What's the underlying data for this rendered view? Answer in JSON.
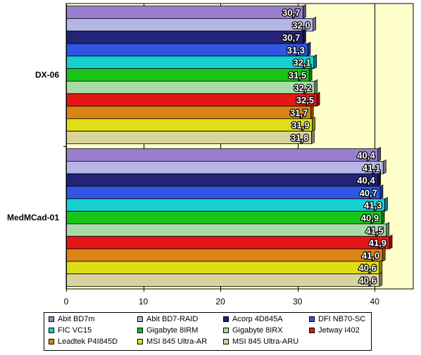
{
  "chart_data": {
    "type": "bar",
    "orientation": "horizontal",
    "categories": [
      "DX-06",
      "MedMCad-01"
    ],
    "series": [
      {
        "name": "Abit BD7m",
        "color": "#9a7fd0",
        "values": [
          30.7,
          40.4
        ]
      },
      {
        "name": "Abit BD7-RAID",
        "color": "#b6b6e6",
        "values": [
          32.0,
          41.1
        ]
      },
      {
        "name": "Acorp 4D845A",
        "color": "#232377",
        "values": [
          30.7,
          40.4
        ]
      },
      {
        "name": "DFI NB70-SC",
        "color": "#2f55e2",
        "values": [
          31.3,
          40.7
        ]
      },
      {
        "name": "FIC VC15",
        "color": "#16cfcf",
        "values": [
          32.1,
          41.3
        ]
      },
      {
        "name": "Gigabyte 8IRM",
        "color": "#18c418",
        "values": [
          31.5,
          40.9
        ]
      },
      {
        "name": "Gigabyte 8IRX",
        "color": "#a9dba9",
        "values": [
          32.2,
          41.5
        ]
      },
      {
        "name": "Jetway I402",
        "color": "#e41616",
        "values": [
          32.5,
          41.9
        ]
      },
      {
        "name": "Leadtek P4I845D",
        "color": "#d98414",
        "values": [
          31.7,
          41.0
        ]
      },
      {
        "name": "MSI 845 Ultra-AR",
        "color": "#dede16",
        "values": [
          31.9,
          40.6
        ]
      },
      {
        "name": "MSI 845 Ultra-ARU",
        "color": "#d8d39c",
        "values": [
          31.8,
          40.6
        ]
      }
    ],
    "value_labels": [
      [
        "30,7",
        "32,0",
        "30,7",
        "31,3",
        "32,1",
        "31,5",
        "32,2",
        "32,5",
        "31,7",
        "31,9",
        "31,8"
      ],
      [
        "40,4",
        "41,1",
        "40,4",
        "40,7",
        "41,3",
        "40,9",
        "41,5",
        "41,9",
        "41,0",
        "40,6",
        "40,6"
      ]
    ],
    "xticks": [
      "0",
      "10",
      "20",
      "30",
      "40"
    ],
    "xlim": [
      0,
      45
    ],
    "grid": true,
    "plot_background": "#ffffcc",
    "legend_position": "bottom",
    "title": "",
    "xlabel": "",
    "ylabel": ""
  }
}
